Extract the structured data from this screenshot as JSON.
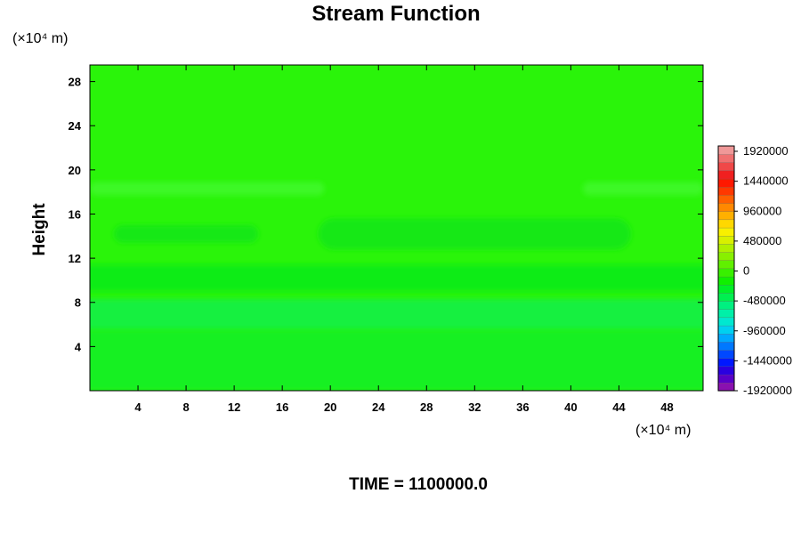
{
  "chart_data": {
    "type": "heatmap",
    "title": "Stream Function",
    "ylabel": "Height",
    "xlabel": "",
    "x_unit_label": "(×10⁴ m)",
    "y_unit_label": "(×10⁴ m)",
    "footer": "TIME = 1100000.0",
    "xlim": [
      0,
      51
    ],
    "ylim": [
      0,
      29.5
    ],
    "x_ticks": [
      4,
      8,
      12,
      16,
      20,
      24,
      28,
      32,
      36,
      40,
      44,
      48
    ],
    "y_ticks": [
      4,
      8,
      12,
      16,
      20,
      24,
      28
    ],
    "colorbar": {
      "range": [
        -1920000,
        1920000
      ],
      "labels": [
        "1920000",
        "1440000",
        "960000",
        "480000",
        "0",
        "-480000",
        "-960000",
        "-1440000",
        "-1920000"
      ],
      "colors": [
        "#8a10b0",
        "#5a00c8",
        "#2a00e0",
        "#0018ff",
        "#0048ff",
        "#0078ff",
        "#00a8ff",
        "#00d0f0",
        "#00e8d0",
        "#00f0a8",
        "#00f080",
        "#00f050",
        "#00f028",
        "#10f000",
        "#38f000",
        "#60f000",
        "#88f000",
        "#b0f000",
        "#d8f000",
        "#f8f000",
        "#ffd800",
        "#ffb000",
        "#ff8800",
        "#ff6000",
        "#ff3800",
        "#ff1800",
        "#f02020",
        "#f04848",
        "#f07070",
        "#f09898"
      ]
    },
    "fields": [
      {
        "name": "background",
        "value": 0,
        "color": "#2af40a"
      },
      {
        "name": "band-upper-18",
        "y_range": [
          17.7,
          18.9
        ],
        "x_range": [
          0,
          19.5
        ],
        "color": "#3cf828"
      },
      {
        "name": "band-upper-18-right",
        "y_range": [
          17.7,
          18.9
        ],
        "x_range": [
          41,
          51
        ],
        "color": "#3cf828"
      },
      {
        "name": "lobe-14-left",
        "y_range": [
          13.4,
          15.0
        ],
        "x_range": [
          2,
          14
        ],
        "color": "#14e814"
      },
      {
        "name": "lobe-14-right",
        "y_range": [
          12.8,
          15.6
        ],
        "x_range": [
          19,
          45
        ],
        "color": "#14e814"
      },
      {
        "name": "band-10",
        "y_range": [
          9.0,
          11.4
        ],
        "x_range": [
          0,
          51
        ],
        "color": "#10ec18"
      },
      {
        "name": "band-7",
        "y_range": [
          5.5,
          8.3
        ],
        "x_range": [
          0,
          51
        ],
        "color": "#16f040"
      },
      {
        "name": "band-4",
        "y_range": [
          0,
          5.5
        ],
        "x_range": [
          0,
          51
        ],
        "color": "#16f024"
      }
    ]
  }
}
